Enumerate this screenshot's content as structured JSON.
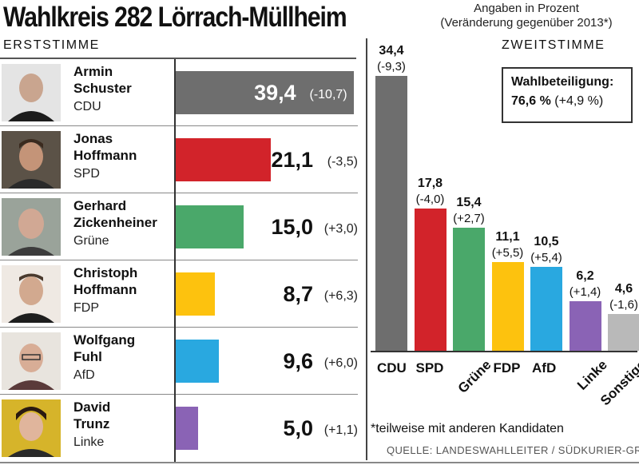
{
  "title": "Wahlkreis 282 Lörrach-Müllheim",
  "note": {
    "line1": "Angaben in Prozent",
    "line2": "(Veränderung gegenüber 2013*)"
  },
  "erststimme": {
    "header": "ERSTSTIMME",
    "candidates": [
      {
        "first": "Armin",
        "last": "Schuster",
        "party": "CDU"
      },
      {
        "first": "Jonas",
        "last": "Hoffmann",
        "party": "SPD"
      },
      {
        "first": "Gerhard",
        "last": "Zickenheiner",
        "party": "Grüne"
      },
      {
        "first": "Christoph",
        "last": "Hoffmann",
        "party": "FDP"
      },
      {
        "first": "Wolfgang",
        "last": "Fuhl",
        "party": "AfD"
      },
      {
        "first": "David",
        "last": "Trunz",
        "party": "Linke"
      }
    ]
  },
  "zweitstimme": {
    "header": "ZWEITSTIMME",
    "turnout_label": "Wahlbeteiligung:",
    "turnout_value": "76,6 %",
    "turnout_change": "(+4,9 %)"
  },
  "colors": {
    "CDU": "#6e6e6e",
    "SPD": "#d2232a",
    "Grüne": "#4aa86a",
    "FDP": "#fdc20e",
    "AfD": "#29a8e0",
    "Linke": "#8a63b5",
    "Sonstige": "#b9b9b9"
  },
  "chart_data": [
    {
      "type": "bar",
      "orientation": "horizontal",
      "title": "ERSTSTIMME",
      "categories": [
        "CDU",
        "SPD",
        "Grüne",
        "FDP",
        "AfD",
        "Linke"
      ],
      "values": [
        39.4,
        21.1,
        15.0,
        8.7,
        9.6,
        5.0
      ],
      "value_labels": [
        "39,4",
        "21,1",
        "15,0",
        "8,7",
        "9,6",
        "5,0"
      ],
      "change_labels": [
        "(-10,7)",
        "(-3,5)",
        "(+3,0)",
        "(+6,3)",
        "(+6,0)",
        "(+1,1)"
      ]
    },
    {
      "type": "bar",
      "orientation": "vertical",
      "title": "ZWEITSTIMME",
      "categories": [
        "CDU",
        "SPD",
        "Grüne",
        "FDP",
        "AfD",
        "Linke",
        "Sonstige"
      ],
      "values": [
        34.4,
        17.8,
        15.4,
        11.1,
        10.5,
        6.2,
        4.6
      ],
      "value_labels": [
        "34,4",
        "17,8",
        "15,4",
        "11,1",
        "10,5",
        "6,2",
        "4,6"
      ],
      "change_labels": [
        "(-9,3)",
        "(-4,0)",
        "(+2,7)",
        "(+5,5)",
        "(+5,4)",
        "(+1,4)",
        "(-1,6)"
      ]
    }
  ],
  "footnote": "*teilweise mit anderen Kandidaten",
  "source": "QUELLE: LANDESWAHLLEITER / SÜDKURIER-GRAFIK"
}
